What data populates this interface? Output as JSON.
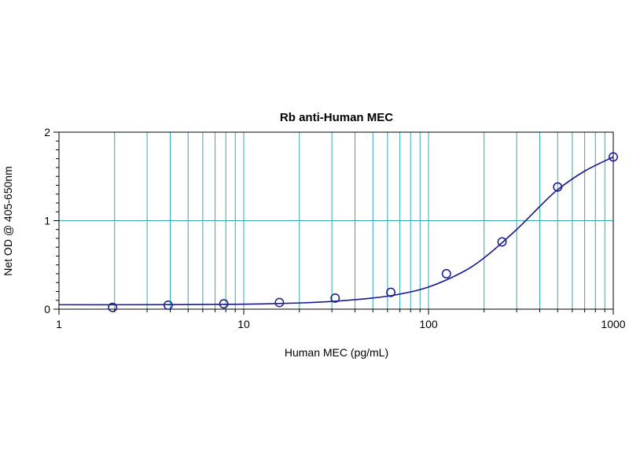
{
  "chart_data": {
    "type": "scatter",
    "title": "Rb anti-Human MEC",
    "xlabel": "Human MEC (pg/mL)",
    "ylabel": "Net OD @ 405-650nm",
    "x_scale": "log",
    "xlim": [
      1,
      1000
    ],
    "ylim": [
      0,
      2
    ],
    "x_ticks": [
      {
        "value": 1,
        "label": "1"
      },
      {
        "value": 10,
        "label": "10"
      },
      {
        "value": 100,
        "label": "100"
      },
      {
        "value": 1000,
        "label": "1000"
      }
    ],
    "y_ticks": [
      {
        "value": 0,
        "label": "0"
      },
      {
        "value": 1,
        "label": "1"
      },
      {
        "value": 2,
        "label": "2"
      }
    ],
    "grid": true,
    "points": {
      "x": [
        1.95,
        3.9,
        7.8,
        15.6,
        31.25,
        62.5,
        125,
        250,
        500,
        1000
      ],
      "y": [
        0.02,
        0.045,
        0.06,
        0.075,
        0.125,
        0.19,
        0.4,
        0.76,
        1.38,
        1.72
      ]
    },
    "fit_curve": {
      "x": [
        1,
        2,
        5,
        10,
        20,
        30,
        50,
        70,
        100,
        150,
        200,
        300,
        400,
        500,
        700,
        1000
      ],
      "y": [
        0.05,
        0.05,
        0.052,
        0.056,
        0.07,
        0.087,
        0.126,
        0.17,
        0.25,
        0.41,
        0.58,
        0.9,
        1.16,
        1.35,
        1.56,
        1.72
      ]
    },
    "colors": {
      "grid": "#31aab6",
      "series": "#1a1a8c",
      "axis": "#000000"
    }
  }
}
